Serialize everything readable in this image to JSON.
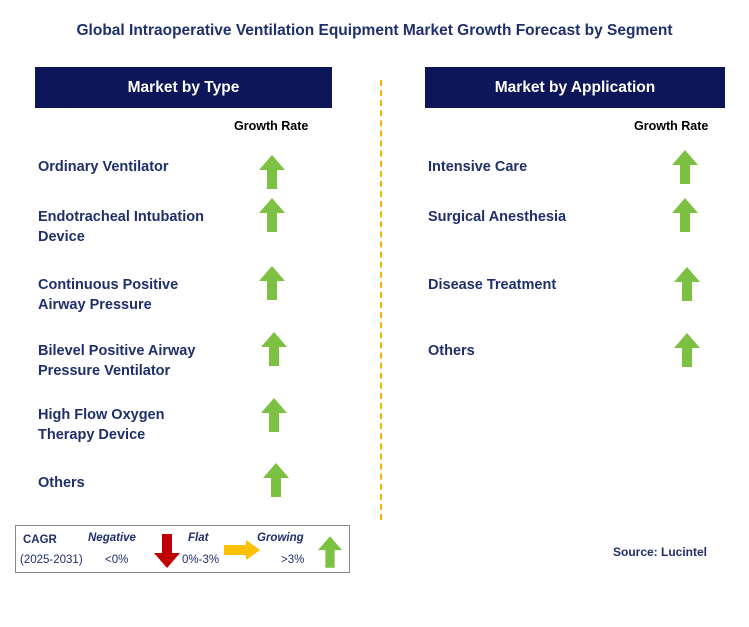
{
  "title": "Global Intraoperative Ventilation Equipment Market Growth Forecast by Segment",
  "columns": {
    "type": {
      "header": "Market by Type",
      "rate_label": "Growth Rate",
      "items": [
        {
          "label_line1": "Ordinary Ventilator",
          "label_line2": "",
          "trend": "growing"
        },
        {
          "label_line1": "Endotracheal Intubation",
          "label_line2": "Device",
          "trend": "growing"
        },
        {
          "label_line1": "Continuous Positive",
          "label_line2": "Airway Pressure",
          "trend": "growing"
        },
        {
          "label_line1": "Bilevel Positive Airway",
          "label_line2": "Pressure Ventilator",
          "trend": "growing"
        },
        {
          "label_line1": "High Flow Oxygen",
          "label_line2": "Therapy Device",
          "trend": "growing"
        },
        {
          "label_line1": "Others",
          "label_line2": "",
          "trend": "growing"
        }
      ]
    },
    "application": {
      "header": "Market by Application",
      "rate_label": "Growth Rate",
      "items": [
        {
          "label_line1": "Intensive Care",
          "trend": "growing"
        },
        {
          "label_line1": "Surgical Anesthesia",
          "trend": "growing"
        },
        {
          "label_line1": "Disease Treatment",
          "trend": "growing"
        },
        {
          "label_line1": "Others",
          "trend": "growing"
        }
      ]
    }
  },
  "legend": {
    "cagr_label": "CAGR",
    "period": "(2025-2031)",
    "negative_label": "Negative",
    "negative_range": "<0%",
    "flat_label": "Flat",
    "flat_range": "0%-3%",
    "growing_label": "Growing",
    "growing_range": ">3%"
  },
  "source": "Source: Lucintel",
  "colors": {
    "header_bg": "#0d1659",
    "text": "#1f2f6b",
    "growing_arrow": "#7dc142",
    "negative_arrow": "#c00000",
    "flat_arrow": "#ffc000",
    "divider": "#f5b400"
  }
}
